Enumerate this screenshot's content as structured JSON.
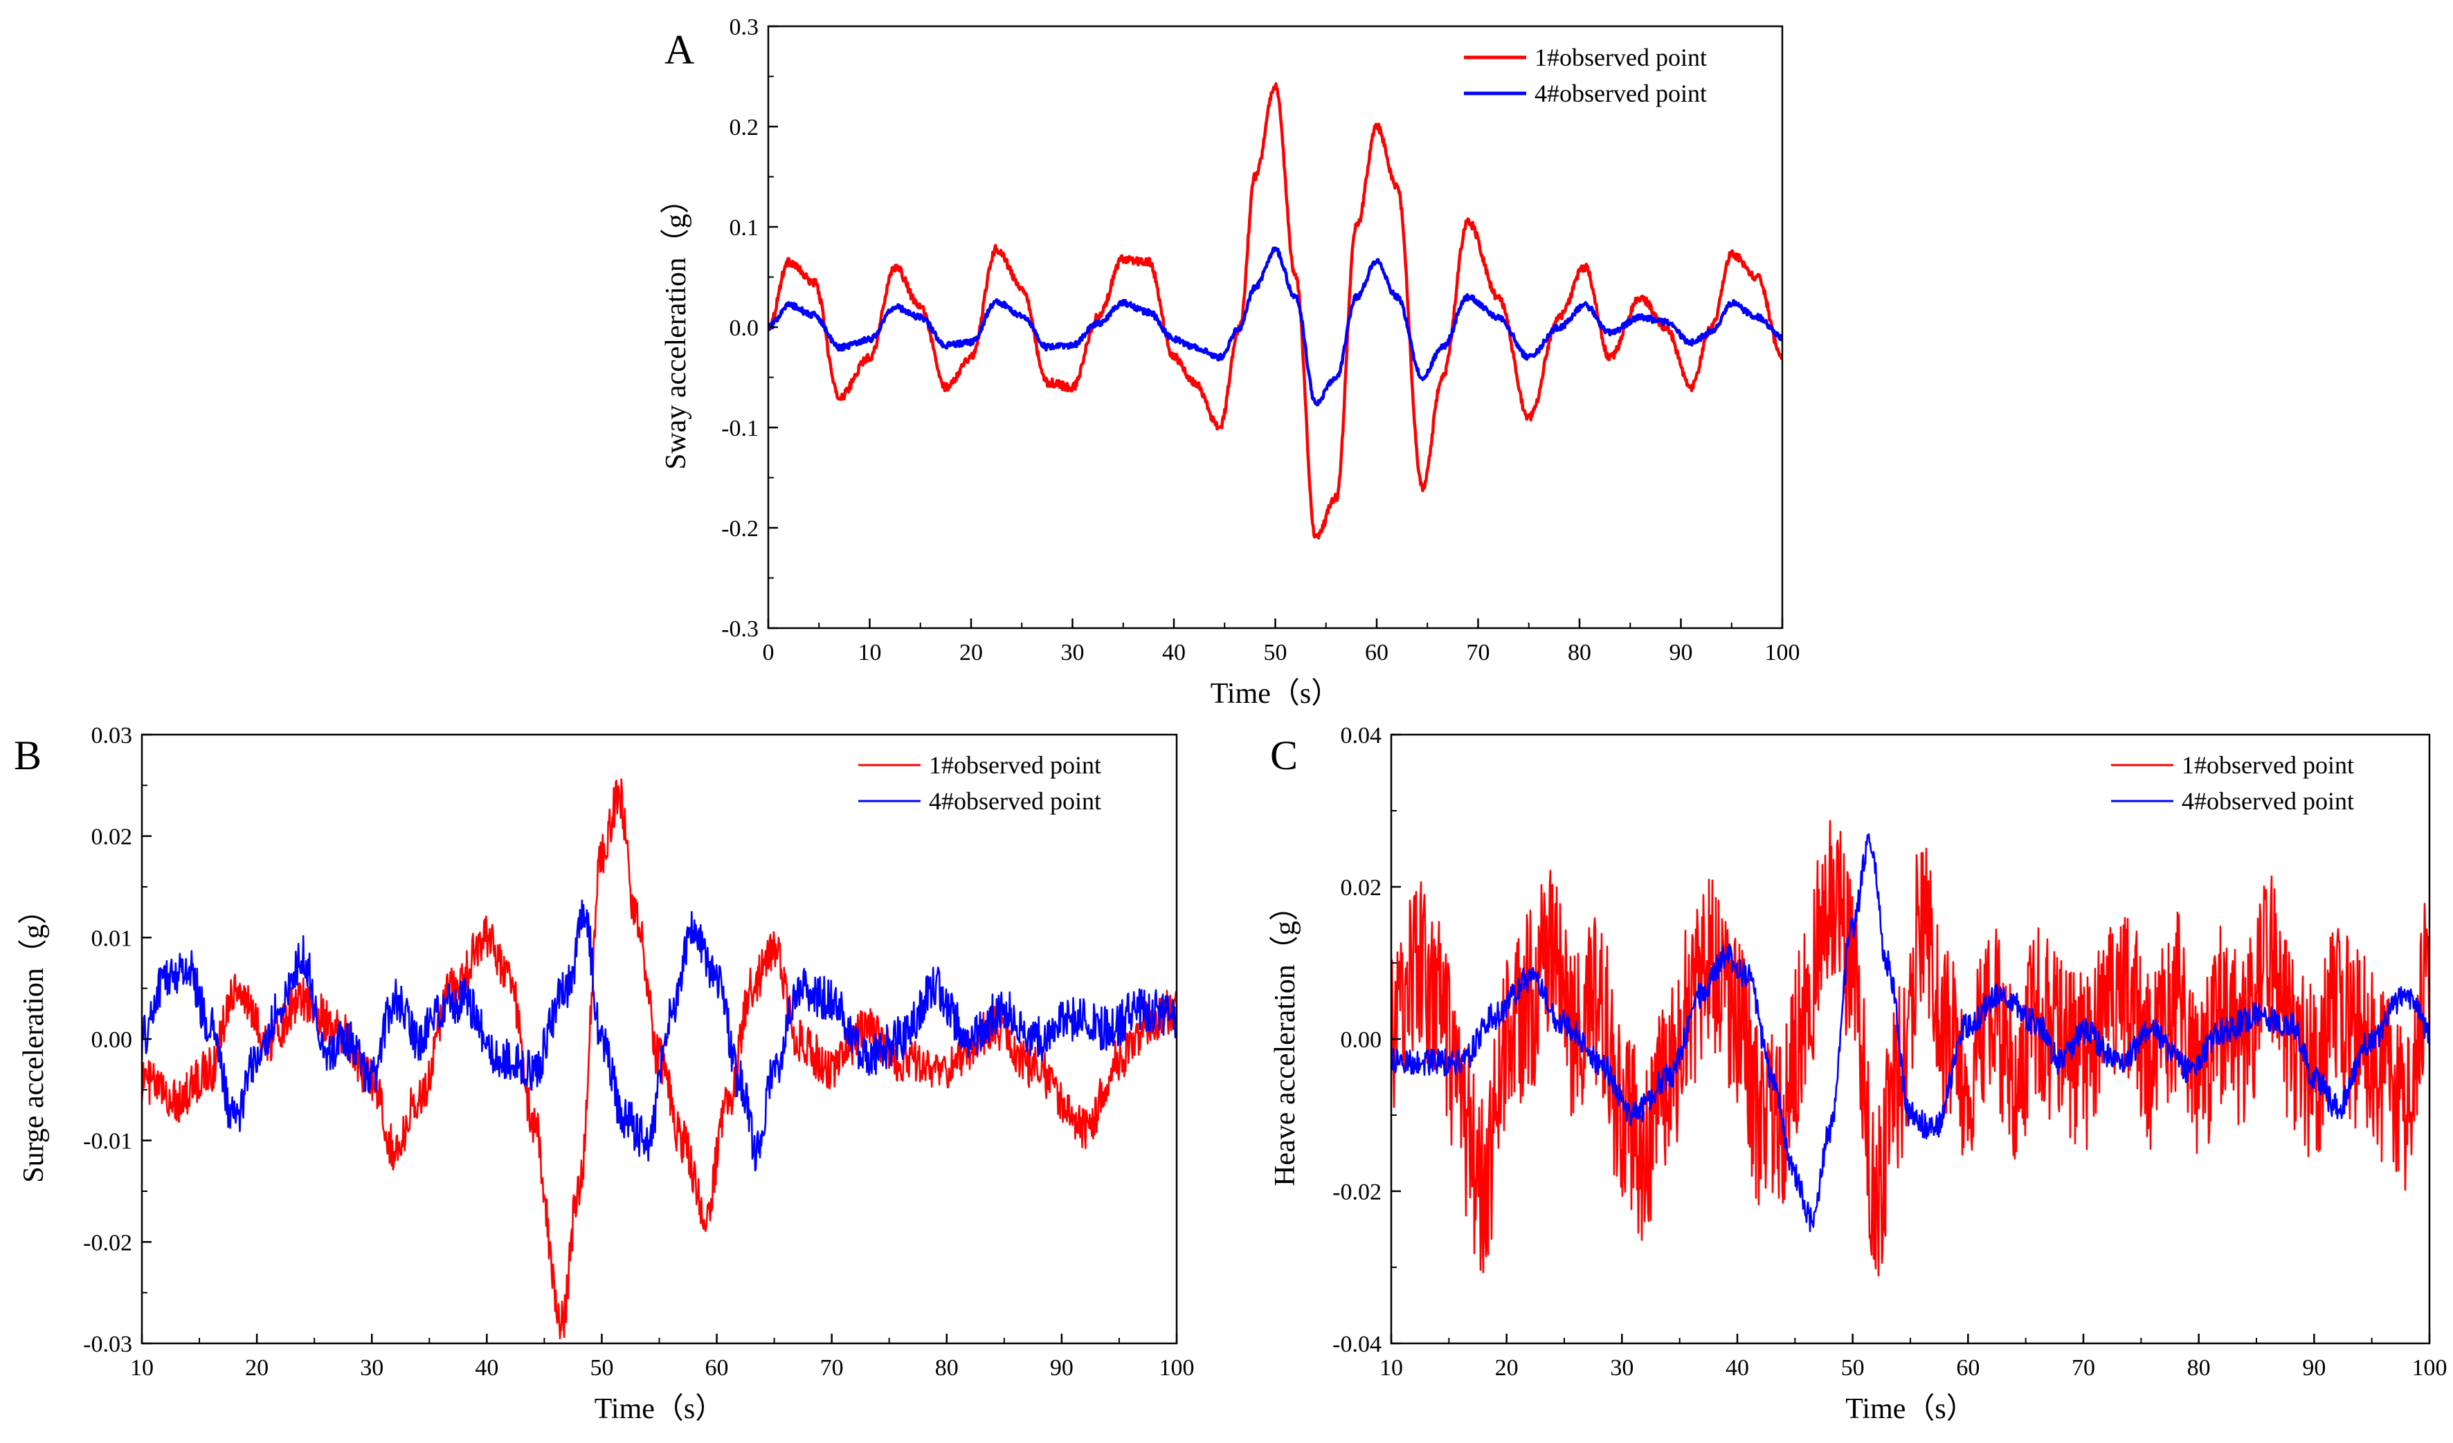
{
  "figure": {
    "title": ""
  },
  "chart_data": [
    {
      "id": "A",
      "type": "line",
      "panel_label": "A",
      "title": "",
      "xlabel": "Time（s）",
      "ylabel": "Sway acceleration（g）",
      "xlim": [
        0,
        100
      ],
      "ylim": [
        -0.3,
        0.3
      ],
      "xticks": [
        0,
        10,
        20,
        30,
        40,
        50,
        60,
        70,
        80,
        90,
        100
      ],
      "yticks": [
        -0.3,
        -0.2,
        -0.1,
        0.0,
        0.1,
        0.2,
        0.3
      ],
      "ytick_labels": [
        "-0.3",
        "-0.2",
        "-0.1",
        "0.0",
        "0.1",
        "0.2",
        "0.3"
      ],
      "legend": {
        "position": "top-right",
        "entries": [
          "1#observed point",
          "4#observed point"
        ]
      },
      "noise": [
        0.004,
        0.003
      ],
      "series": [
        {
          "name": "1#observed point",
          "color": "#ff0000",
          "x": [
            0,
            2,
            4.5,
            7,
            10,
            12.5,
            15,
            17.5,
            20,
            22.5,
            25,
            27.5,
            30,
            32.5,
            35,
            37.5,
            40,
            42,
            44.5,
            46.5,
            48,
            50,
            52,
            54,
            56,
            58,
            60,
            62,
            64.5,
            66.5,
            69,
            72,
            75,
            78,
            80.5,
            83,
            86,
            88.5,
            91,
            93,
            95,
            97.5,
            100
          ],
          "values": [
            0.0,
            0.065,
            0.045,
            -0.07,
            -0.03,
            0.06,
            0.02,
            -0.06,
            -0.03,
            0.078,
            0.04,
            -0.055,
            -0.06,
            0.01,
            0.068,
            0.065,
            -0.03,
            -0.055,
            -0.1,
            0.0,
            0.15,
            0.24,
            0.05,
            -0.21,
            -0.17,
            0.1,
            0.2,
            0.14,
            -0.16,
            -0.05,
            0.105,
            0.03,
            -0.09,
            0.01,
            0.06,
            -0.03,
            0.03,
            0.0,
            -0.06,
            0.0,
            0.073,
            0.05,
            -0.03
          ]
        },
        {
          "name": "4#observed point",
          "color": "#0000ff",
          "x": [
            0,
            2,
            4.5,
            7,
            10,
            12.5,
            15,
            17.5,
            20,
            22.5,
            25,
            27.5,
            30,
            32.5,
            35,
            37.5,
            40,
            42,
            44.5,
            46.5,
            48,
            50,
            52,
            54,
            56,
            58,
            60,
            62,
            64.5,
            66.5,
            69,
            72,
            75,
            78,
            80.5,
            83,
            86,
            88.5,
            91,
            93,
            95,
            97.5,
            100
          ],
          "values": [
            0.0,
            0.022,
            0.012,
            -0.02,
            -0.012,
            0.02,
            0.01,
            -0.018,
            -0.015,
            0.025,
            0.012,
            -0.02,
            -0.018,
            0.004,
            0.024,
            0.015,
            -0.012,
            -0.02,
            -0.03,
            0.0,
            0.04,
            0.077,
            0.03,
            -0.075,
            -0.05,
            0.03,
            0.065,
            0.03,
            -0.05,
            -0.02,
            0.03,
            0.01,
            -0.03,
            0.0,
            0.022,
            -0.005,
            0.01,
            0.005,
            -0.015,
            -0.005,
            0.024,
            0.01,
            -0.01
          ]
        }
      ]
    },
    {
      "id": "B",
      "type": "line",
      "panel_label": "B",
      "title": "",
      "xlabel": "Time（s）",
      "ylabel": "Surge acceleration（g）",
      "xlim": [
        10,
        100
      ],
      "ylim": [
        -0.03,
        0.03
      ],
      "xticks": [
        10,
        20,
        30,
        40,
        50,
        60,
        70,
        80,
        90,
        100
      ],
      "yticks": [
        -0.03,
        -0.02,
        -0.01,
        0.0,
        0.01,
        0.02,
        0.03
      ],
      "ytick_labels": [
        "-0.03",
        "-0.02",
        "-0.01",
        "0.00",
        "0.01",
        "0.02",
        "0.03"
      ],
      "legend": {
        "position": "top-right",
        "entries": [
          "1#observed point",
          "4#observed point"
        ]
      },
      "noise": [
        0.0022,
        0.0022
      ],
      "series": [
        {
          "name": "1#observed point",
          "color": "#ff0000",
          "x": [
            10,
            13,
            16,
            18,
            21,
            24,
            27,
            30,
            32,
            34,
            37,
            40,
            42,
            44,
            46.5,
            48,
            50,
            51.5,
            53,
            55,
            57,
            59,
            61,
            63,
            65,
            67,
            70,
            73,
            76,
            80,
            84,
            88,
            90,
            92,
            95,
            98,
            100
          ],
          "values": [
            -0.004,
            -0.006,
            -0.003,
            0.005,
            0.0,
            0.004,
            0.001,
            -0.004,
            -0.011,
            -0.006,
            0.005,
            0.01,
            0.006,
            -0.008,
            -0.028,
            -0.015,
            0.018,
            0.024,
            0.012,
            -0.002,
            -0.01,
            -0.017,
            -0.006,
            0.005,
            0.009,
            0.0,
            -0.003,
            0.001,
            -0.002,
            -0.003,
            0.001,
            -0.003,
            -0.006,
            -0.009,
            -0.002,
            0.002,
            0.003
          ]
        },
        {
          "name": "4#observed point",
          "color": "#0000ff",
          "x": [
            10,
            12,
            14,
            16,
            18,
            20,
            22,
            24,
            26,
            28,
            30,
            32,
            34,
            36,
            38,
            41,
            44,
            47,
            48.5,
            50,
            52,
            54,
            56,
            58,
            60,
            62,
            63.5,
            65,
            67,
            70,
            73,
            76,
            79,
            82,
            85,
            88,
            91,
            94,
            97,
            100
          ],
          "values": [
            0.0,
            0.006,
            0.007,
            0.001,
            -0.008,
            -0.002,
            0.003,
            0.008,
            -0.001,
            0.0,
            -0.004,
            0.004,
            0.0,
            0.003,
            0.004,
            -0.002,
            -0.003,
            0.005,
            0.012,
            0.0,
            -0.008,
            -0.01,
            0.002,
            0.011,
            0.006,
            -0.004,
            -0.011,
            -0.003,
            0.005,
            0.004,
            -0.002,
            0.0,
            0.005,
            0.0,
            0.003,
            0.0,
            0.002,
            0.001,
            0.003,
            0.002
          ]
        }
      ]
    },
    {
      "id": "C",
      "type": "line",
      "panel_label": "C",
      "title": "",
      "xlabel": "Time（s）",
      "ylabel": "Heave acceleration（g）",
      "xlim": [
        10,
        100
      ],
      "ylim": [
        -0.04,
        0.04
      ],
      "xticks": [
        10,
        20,
        30,
        40,
        50,
        60,
        70,
        80,
        90,
        100
      ],
      "yticks": [
        -0.04,
        -0.02,
        0.0,
        0.02,
        0.04
      ],
      "ytick_labels": [
        "-0.04",
        "-0.02",
        "0.00",
        "0.02",
        "0.04"
      ],
      "legend": {
        "position": "top-right",
        "entries": [
          "1#observed point",
          "4#observed point"
        ]
      },
      "noise": [
        0.012,
        0.0018
      ],
      "series": [
        {
          "name": "1#observed point",
          "color": "#ff0000",
          "x": [
            10,
            12,
            14,
            16,
            18,
            20,
            22,
            24,
            26,
            28,
            30,
            32,
            34,
            36,
            38,
            40,
            42,
            44,
            46,
            48,
            50,
            52,
            54,
            56,
            58,
            60,
            62,
            64,
            66,
            68,
            70,
            72,
            74,
            76,
            78,
            80,
            82,
            84,
            86,
            88,
            90,
            92,
            94,
            96,
            98,
            100
          ],
          "values": [
            0.0,
            0.01,
            0.005,
            -0.01,
            -0.02,
            0.0,
            0.005,
            0.012,
            0.0,
            0.005,
            -0.01,
            -0.015,
            -0.005,
            0.005,
            0.01,
            0.003,
            -0.01,
            -0.01,
            0.005,
            0.02,
            0.01,
            -0.02,
            -0.005,
            0.015,
            0.0,
            -0.005,
            0.005,
            -0.005,
            0.003,
            0.0,
            -0.003,
            0.003,
            0.005,
            -0.003,
            0.005,
            -0.005,
            0.003,
            0.0,
            0.012,
            0.0,
            -0.005,
            0.003,
            0.0,
            -0.005,
            -0.01,
            0.008
          ]
        },
        {
          "name": "4#observed point",
          "color": "#0000ff",
          "x": [
            10,
            13,
            16,
            19,
            22,
            25,
            28,
            31,
            34,
            37,
            39,
            41,
            43,
            45,
            46.5,
            48,
            50,
            51.5,
            53,
            55,
            57,
            60,
            63,
            66,
            68,
            70,
            73,
            76,
            79,
            82,
            85,
            88,
            90,
            92,
            95,
            98,
            100
          ],
          "values": [
            -0.003,
            -0.003,
            -0.003,
            0.003,
            0.008,
            0.002,
            -0.003,
            -0.01,
            -0.005,
            0.006,
            0.011,
            0.008,
            -0.005,
            -0.018,
            -0.024,
            -0.012,
            0.015,
            0.026,
            0.01,
            -0.01,
            -0.012,
            0.002,
            0.006,
            0.002,
            -0.003,
            0.001,
            -0.003,
            0.001,
            -0.004,
            0.001,
            0.003,
            0.002,
            -0.005,
            -0.009,
            0.0,
            0.006,
            0.001
          ]
        }
      ]
    }
  ]
}
